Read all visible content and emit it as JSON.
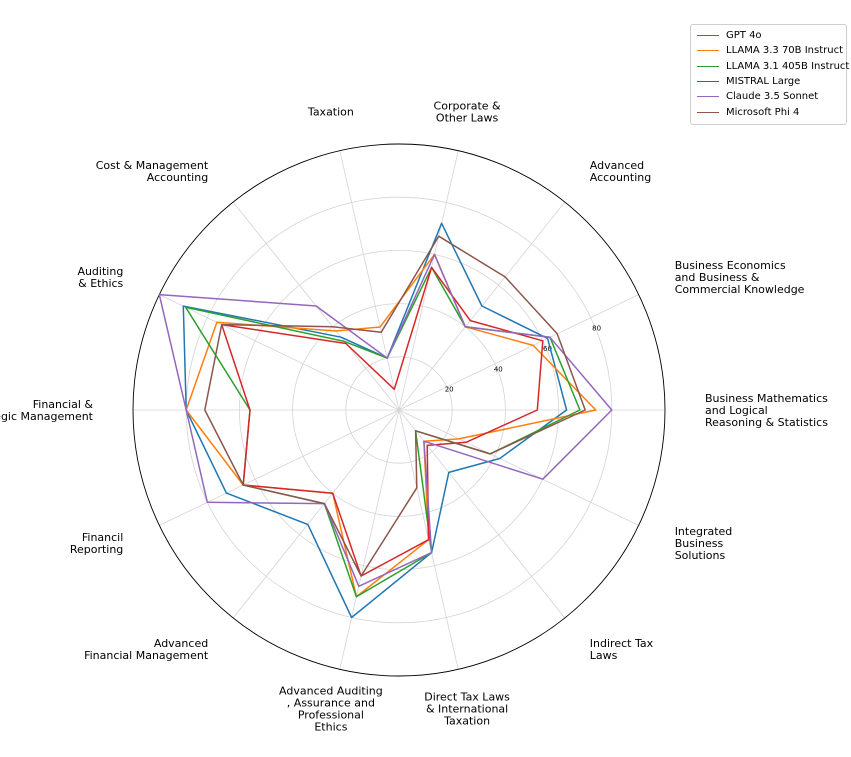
{
  "chart_data": {
    "type": "radar",
    "title": "",
    "categories": [
      "Business Mathematics\nand Logical\nReasoning & Statistics",
      "Business Economics\nand Business &\nCommercial Knowledge",
      "Advanced\nAccounting",
      "Corporate &\nOther Laws",
      "Taxation",
      "Cost & Management\nAccounting",
      "Auditing\n& Ethics",
      "Financial &\nStrategic Management",
      "Financil\nReporting",
      "Advanced\nFinancial Management",
      "Advanced Auditing\n, Assurance and\nProfessional\nEthics",
      "Direct Tax Laws\n& International\nTaxation",
      "Indirect Tax\nLaws",
      "Integrated\nBusiness\nSolutions"
    ],
    "radial_ticks": [
      20,
      40,
      60,
      80
    ],
    "rlim": [
      0,
      100
    ],
    "grid": true,
    "legend_position": "top-right",
    "series": [
      {
        "name": "GPT 4o",
        "color": "#1f77b4",
        "values": [
          63,
          62,
          50,
          72,
          20,
          35,
          90,
          80,
          72,
          55,
          80,
          55,
          30,
          42
        ]
      },
      {
        "name": "LLAMA 3.3 70B Instruct",
        "color": "#ff7f0e",
        "values": [
          74,
          56,
          40,
          60,
          32,
          38,
          76,
          80,
          65,
          40,
          72,
          50,
          15,
          25
        ]
      },
      {
        "name": "LLAMA 3.1 405B Instruct",
        "color": "#2ca02c",
        "values": [
          68,
          63,
          40,
          55,
          20,
          33,
          89,
          56,
          65,
          45,
          72,
          55,
          10,
          38
        ]
      },
      {
        "name": "MISTRAL Large",
        "color": "#d62728",
        "values": [
          52,
          60,
          43,
          55,
          8,
          32,
          74,
          56,
          65,
          40,
          64,
          50,
          17,
          28
        ]
      },
      {
        "name": "Claude 3.5 Sonnet",
        "color": "#9467bd",
        "values": [
          80,
          63,
          40,
          60,
          20,
          50,
          100,
          80,
          80,
          45,
          68,
          55,
          15,
          60
        ]
      },
      {
        "name": "Microsoft Phi 4",
        "color": "#8c564b",
        "values": [
          70,
          66,
          64,
          67,
          30,
          40,
          74,
          73,
          65,
          45,
          64,
          30,
          10,
          38
        ]
      }
    ]
  }
}
